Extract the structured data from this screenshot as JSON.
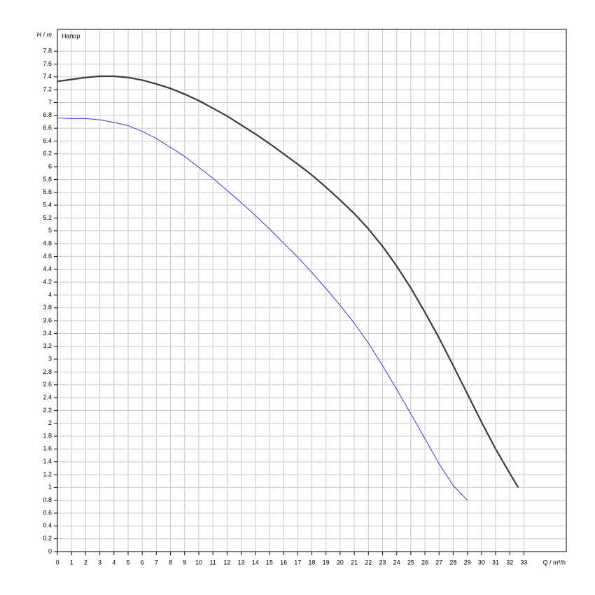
{
  "chart_data": {
    "type": "line",
    "y_label": "H / m",
    "x_label": "Q / m³/h",
    "annotation": "Напор",
    "xlim": [
      0,
      36
    ],
    "ylim": [
      0,
      8.14
    ],
    "xticks": [
      0,
      1,
      2,
      3,
      4,
      5,
      6,
      7,
      8,
      9,
      10,
      11,
      12,
      13,
      14,
      15,
      16,
      17,
      18,
      19,
      20,
      21,
      22,
      23,
      24,
      25,
      26,
      27,
      28,
      29,
      30,
      31,
      32,
      33
    ],
    "yticks": [
      0,
      0.2,
      0.4,
      0.6,
      0.8,
      1,
      1.2,
      1.4,
      1.6,
      1.8,
      2,
      2.2,
      2.4,
      2.6,
      2.8,
      3,
      3.2,
      3.4,
      3.6,
      3.8,
      4,
      4.2,
      4.4,
      4.6,
      4.8,
      5,
      5.2,
      5.4,
      5.6,
      5.8,
      6,
      6.2,
      6.4,
      6.6,
      6.8,
      7,
      7.2,
      7.4,
      7.6,
      7.8
    ],
    "grid": true,
    "series": [
      {
        "color": "#3a3a46",
        "width": 2.2,
        "x": [
          0,
          1,
          2,
          3,
          4,
          5,
          6,
          7,
          8,
          9,
          10,
          11,
          12,
          13,
          14,
          15,
          16,
          17,
          18,
          19,
          20,
          21,
          22,
          23,
          24,
          25,
          26,
          27,
          28,
          29,
          30,
          31,
          32,
          32.6
        ],
        "values": [
          7.33,
          7.36,
          7.39,
          7.41,
          7.41,
          7.39,
          7.35,
          7.29,
          7.22,
          7.13,
          7.03,
          6.91,
          6.79,
          6.65,
          6.51,
          6.36,
          6.2,
          6.04,
          5.87,
          5.68,
          5.48,
          5.27,
          5.03,
          4.76,
          4.45,
          4.11,
          3.73,
          3.33,
          2.9,
          2.46,
          2.02,
          1.6,
          1.22,
          1.0
        ]
      },
      {
        "color": "#3838c8",
        "width": 1,
        "x": [
          0,
          1,
          2,
          3,
          4,
          5,
          6,
          7,
          8,
          9,
          10,
          11,
          12,
          13,
          14,
          15,
          16,
          17,
          18,
          19,
          20,
          21,
          22,
          23,
          24,
          25,
          26,
          27,
          28,
          29
        ],
        "values": [
          6.76,
          6.75,
          6.75,
          6.73,
          6.69,
          6.64,
          6.55,
          6.44,
          6.3,
          6.16,
          5.99,
          5.82,
          5.63,
          5.44,
          5.24,
          5.03,
          4.81,
          4.59,
          4.35,
          4.1,
          3.84,
          3.56,
          3.25,
          2.9,
          2.53,
          2.15,
          1.76,
          1.37,
          1.03,
          0.8
        ]
      }
    ]
  }
}
